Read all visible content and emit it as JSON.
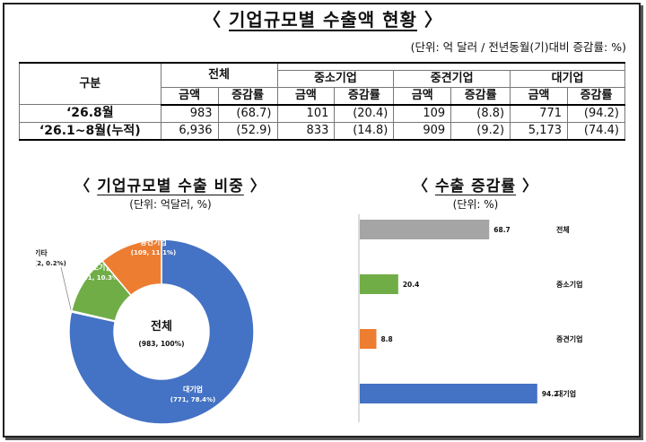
{
  "title": "기업규모별 수출액 현황",
  "unit_note": "(단위: 억 달러 / 전년동월(기)대비 증감률: %)",
  "table": {
    "row_header": "구분",
    "groups": [
      "전체",
      "중소기업",
      "중견기업",
      "대기업"
    ],
    "sub_headers": [
      "금액",
      "증감률"
    ],
    "rows": [
      {
        "label": "‘26.8월",
        "cells": [
          "983",
          "(68.7)",
          "101",
          "(20.4)",
          "109",
          "(8.8)",
          "771",
          "(94.2)"
        ]
      },
      {
        "label": "‘26.1~8월(누적)",
        "cells": [
          "6,936",
          "(52.9)",
          "833",
          "(14.8)",
          "909",
          "(9.2)",
          "5,173",
          "(74.4)"
        ]
      }
    ]
  },
  "pie_section": {
    "title": "기업규모별 수출 비중",
    "unit": "(단위: 억달러, %)"
  },
  "bar_section": {
    "title": "수출 증감률",
    "unit": "(단위: %)"
  },
  "chart_data": [
    {
      "type": "pie",
      "center_label": "전체",
      "center_sub": "(983, 100%)",
      "slices": [
        {
          "name": "대기업",
          "value": 771,
          "percent": 78.4,
          "label": "(771, 78.4%)",
          "color": "#4472C4"
        },
        {
          "name": "기타",
          "value": 2,
          "percent": 0.2,
          "label": "(2, 0.2%)",
          "color": "#A5A5A5"
        },
        {
          "name": "중소기업",
          "value": 101,
          "percent": 10.3,
          "label": "(101, 10.3%)",
          "color": "#70AD47"
        },
        {
          "name": "중견기업",
          "value": 109,
          "percent": 11.1,
          "label": "(109, 11.1%)",
          "color": "#ED7D31"
        }
      ]
    },
    {
      "type": "bar",
      "orientation": "horizontal",
      "categories": [
        "전체",
        "중소기업",
        "중견기업",
        "대기업"
      ],
      "values": [
        68.7,
        20.4,
        8.8,
        94.2
      ],
      "colors": [
        "#A5A5A5",
        "#70AD47",
        "#ED7D31",
        "#4472C4"
      ],
      "xlim": [
        0,
        100
      ],
      "grid": false
    }
  ]
}
